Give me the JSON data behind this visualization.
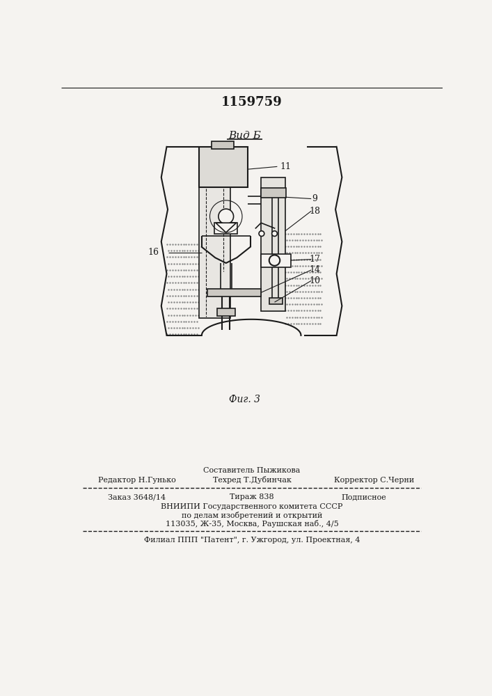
{
  "patent_number": "1159759",
  "view_label": "Вид Б",
  "fig_label": "Фиг. 3",
  "bg_color": "#f5f3f0",
  "line_color": "#1a1a1a",
  "footer_compose": "Составитель Пыжикова",
  "footer_editor": "Редактор Н.Гунько",
  "footer_tech": "Техред Т.Дубинчак",
  "footer_corr": "Корректор С.Черни",
  "footer_order": "Заказ 3648/14",
  "footer_tirazh": "Тираж 838",
  "footer_podp": "Подписное",
  "footer_vniip": "ВНИИПИ Государственного комитета СССР",
  "footer_po": "по делам изобретений и открытий",
  "footer_addr": "113035, Ж-35, Москва, Раушская наб., 4/5",
  "footer_filial": "Филиал ППП \"Патент\", г. Ужгород, ул. Проектная, 4"
}
